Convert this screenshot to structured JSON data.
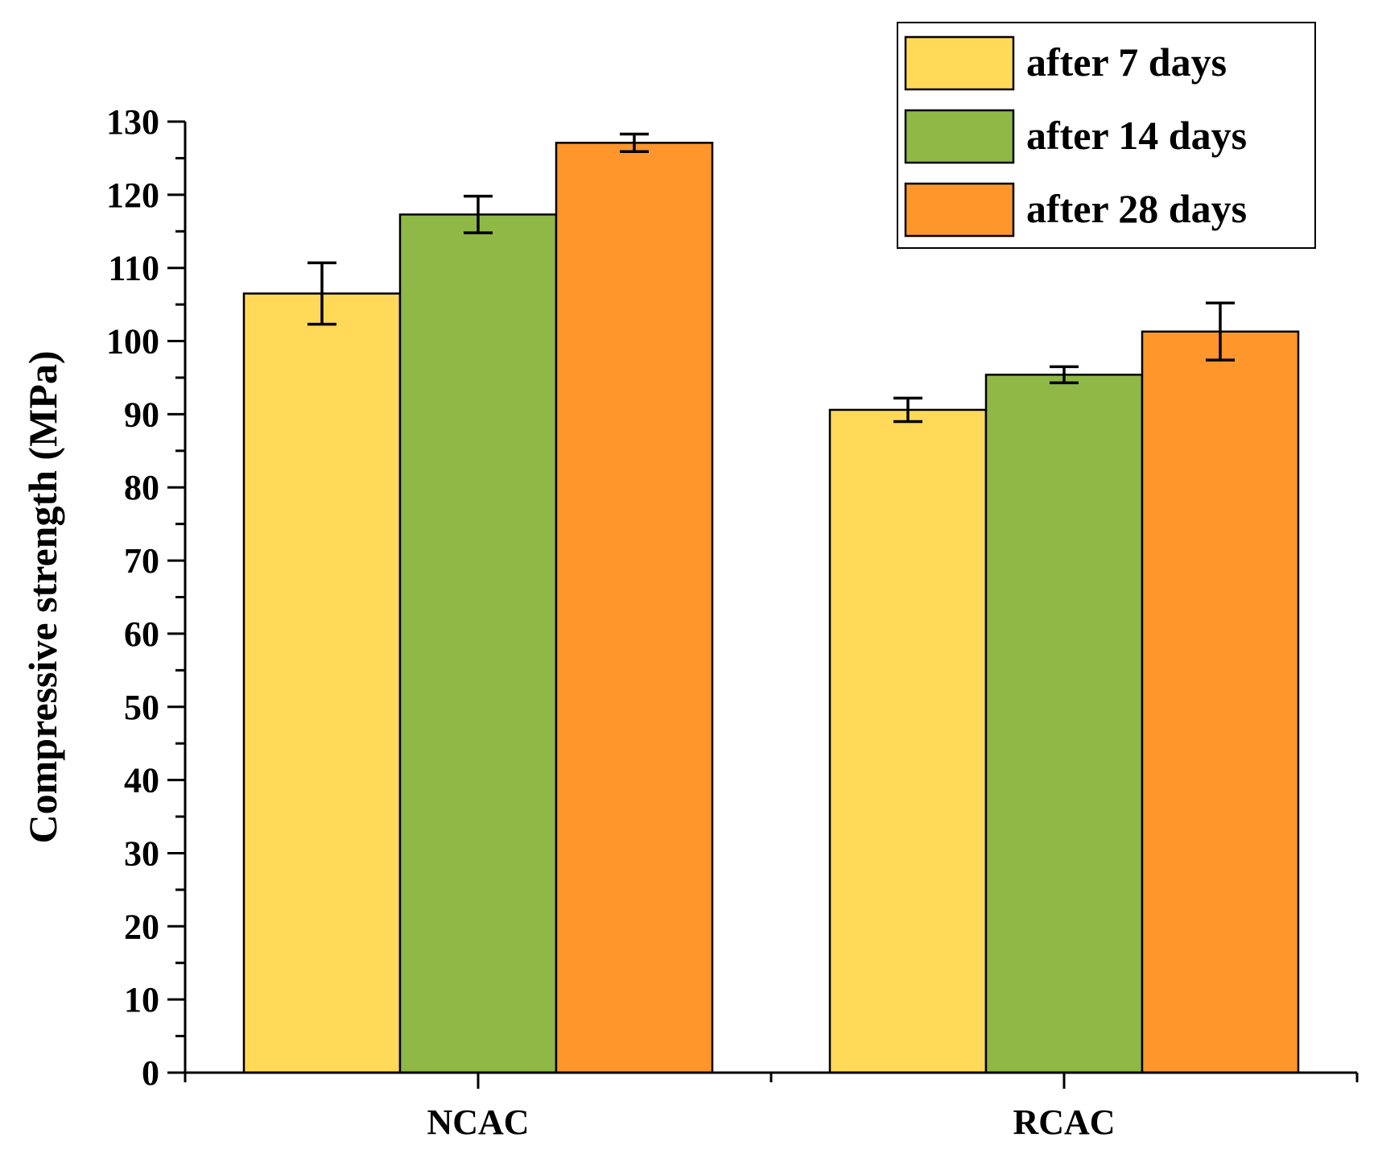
{
  "chart_data": {
    "type": "bar",
    "title": "",
    "xlabel": "",
    "ylabel": "Compressive strength (MPa)",
    "ylim": [
      0,
      130
    ],
    "yticks": [
      0,
      10,
      20,
      30,
      40,
      50,
      60,
      70,
      80,
      90,
      100,
      110,
      120,
      130
    ],
    "grid": false,
    "legend_position": "top-right",
    "categories": [
      "NCAC",
      "RCAC"
    ],
    "series": [
      {
        "name": "after 7 days",
        "color": "#FFD957",
        "values": [
          106.5,
          90.6
        ],
        "errors": [
          4.2,
          1.6
        ]
      },
      {
        "name": "after 14 days",
        "color": "#8FB847",
        "values": [
          117.3,
          95.4
        ],
        "errors": [
          2.5,
          1.1
        ]
      },
      {
        "name": "after 28 days",
        "color": "#FF962B",
        "values": [
          127.1,
          101.3
        ],
        "errors": [
          1.2,
          3.9
        ]
      }
    ]
  }
}
